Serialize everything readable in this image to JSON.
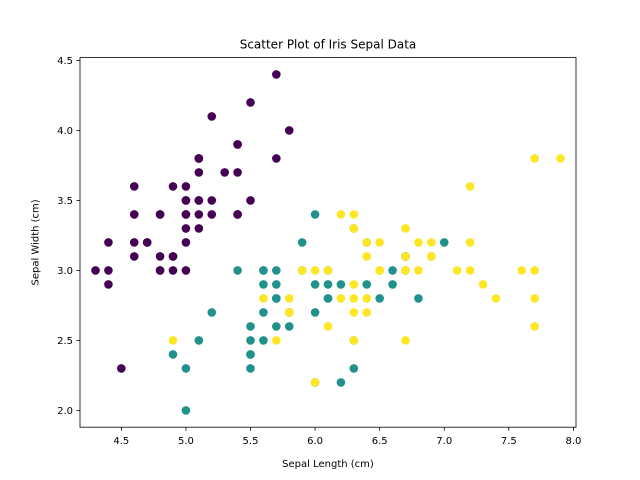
{
  "chart_data": {
    "type": "scatter",
    "title": "Scatter Plot of Iris Sepal Data",
    "xlabel": "Sepal Length (cm)",
    "ylabel": "Sepal Width (cm)",
    "xlim": [
      4.18,
      8.02
    ],
    "ylim": [
      1.88,
      4.52
    ],
    "xticks": [
      4.5,
      5.0,
      5.5,
      6.0,
      6.5,
      7.0,
      7.5,
      8.0
    ],
    "xtick_labels": [
      "4.5",
      "5.0",
      "5.5",
      "6.0",
      "6.5",
      "7.0",
      "7.5",
      "8.0"
    ],
    "yticks": [
      2.0,
      2.5,
      3.0,
      3.5,
      4.0,
      4.5
    ],
    "ytick_labels": [
      "2.0",
      "2.5",
      "3.0",
      "3.5",
      "4.0",
      "4.5"
    ],
    "grid": false,
    "legend": false,
    "series": [
      {
        "color": "#440154",
        "points": [
          [
            5.1,
            3.5
          ],
          [
            4.9,
            3.0
          ],
          [
            4.7,
            3.2
          ],
          [
            4.6,
            3.1
          ],
          [
            5.0,
            3.6
          ],
          [
            5.4,
            3.9
          ],
          [
            4.6,
            3.4
          ],
          [
            5.0,
            3.4
          ],
          [
            4.4,
            2.9
          ],
          [
            4.9,
            3.1
          ],
          [
            5.4,
            3.7
          ],
          [
            4.8,
            3.4
          ],
          [
            4.8,
            3.0
          ],
          [
            4.3,
            3.0
          ],
          [
            5.8,
            4.0
          ],
          [
            5.7,
            4.4
          ],
          [
            5.4,
            3.9
          ],
          [
            5.1,
            3.5
          ],
          [
            5.7,
            3.8
          ],
          [
            5.1,
            3.8
          ],
          [
            5.4,
            3.4
          ],
          [
            5.1,
            3.7
          ],
          [
            4.6,
            3.6
          ],
          [
            5.1,
            3.3
          ],
          [
            4.8,
            3.4
          ],
          [
            5.0,
            3.0
          ],
          [
            5.0,
            3.4
          ],
          [
            5.2,
            3.5
          ],
          [
            5.2,
            3.4
          ],
          [
            4.7,
            3.2
          ],
          [
            4.8,
            3.1
          ],
          [
            5.4,
            3.4
          ],
          [
            5.2,
            4.1
          ],
          [
            5.5,
            4.2
          ],
          [
            4.9,
            3.1
          ],
          [
            5.0,
            3.2
          ],
          [
            5.5,
            3.5
          ],
          [
            4.9,
            3.6
          ],
          [
            4.4,
            3.0
          ],
          [
            5.1,
            3.4
          ],
          [
            5.0,
            3.5
          ],
          [
            4.5,
            2.3
          ],
          [
            4.4,
            3.2
          ],
          [
            5.0,
            3.5
          ],
          [
            5.1,
            3.8
          ],
          [
            4.8,
            3.0
          ],
          [
            5.1,
            3.8
          ],
          [
            4.6,
            3.2
          ],
          [
            5.3,
            3.7
          ],
          [
            5.0,
            3.3
          ]
        ]
      },
      {
        "color": "#21918c",
        "points": [
          [
            7.0,
            3.2
          ],
          [
            6.4,
            3.2
          ],
          [
            6.9,
            3.1
          ],
          [
            5.5,
            2.3
          ],
          [
            6.5,
            2.8
          ],
          [
            5.7,
            2.8
          ],
          [
            6.3,
            3.3
          ],
          [
            4.9,
            2.4
          ],
          [
            6.6,
            2.9
          ],
          [
            5.2,
            2.7
          ],
          [
            5.0,
            2.0
          ],
          [
            5.9,
            3.0
          ],
          [
            6.0,
            2.2
          ],
          [
            6.1,
            2.9
          ],
          [
            5.6,
            2.9
          ],
          [
            6.7,
            3.1
          ],
          [
            5.6,
            3.0
          ],
          [
            5.8,
            2.7
          ],
          [
            6.2,
            2.2
          ],
          [
            5.6,
            2.5
          ],
          [
            5.9,
            3.2
          ],
          [
            6.1,
            2.8
          ],
          [
            6.3,
            2.5
          ],
          [
            6.1,
            2.8
          ],
          [
            6.4,
            2.9
          ],
          [
            6.6,
            3.0
          ],
          [
            6.8,
            2.8
          ],
          [
            6.7,
            3.0
          ],
          [
            6.0,
            2.9
          ],
          [
            5.7,
            2.6
          ],
          [
            5.5,
            2.4
          ],
          [
            5.5,
            2.4
          ],
          [
            5.8,
            2.7
          ],
          [
            6.0,
            2.7
          ],
          [
            5.4,
            3.0
          ],
          [
            6.0,
            3.4
          ],
          [
            6.7,
            3.1
          ],
          [
            6.3,
            2.3
          ],
          [
            5.6,
            3.0
          ],
          [
            5.5,
            2.5
          ],
          [
            5.5,
            2.6
          ],
          [
            6.1,
            3.0
          ],
          [
            5.8,
            2.6
          ],
          [
            5.0,
            2.3
          ],
          [
            5.6,
            2.7
          ],
          [
            5.7,
            3.0
          ],
          [
            5.7,
            2.9
          ],
          [
            6.2,
            2.9
          ],
          [
            5.1,
            2.5
          ],
          [
            5.7,
            2.8
          ]
        ]
      },
      {
        "color": "#fde725",
        "points": [
          [
            6.3,
            3.3
          ],
          [
            5.8,
            2.7
          ],
          [
            7.1,
            3.0
          ],
          [
            6.3,
            2.9
          ],
          [
            6.5,
            3.0
          ],
          [
            7.6,
            3.0
          ],
          [
            4.9,
            2.5
          ],
          [
            7.3,
            2.9
          ],
          [
            6.7,
            2.5
          ],
          [
            7.2,
            3.6
          ],
          [
            6.5,
            3.2
          ],
          [
            6.4,
            2.7
          ],
          [
            6.8,
            3.0
          ],
          [
            5.7,
            2.5
          ],
          [
            5.8,
            2.8
          ],
          [
            6.4,
            3.2
          ],
          [
            6.5,
            3.0
          ],
          [
            7.7,
            3.8
          ],
          [
            7.7,
            2.6
          ],
          [
            6.0,
            2.2
          ],
          [
            6.9,
            3.2
          ],
          [
            5.6,
            2.8
          ],
          [
            7.7,
            2.8
          ],
          [
            6.3,
            2.7
          ],
          [
            6.7,
            3.3
          ],
          [
            7.2,
            3.2
          ],
          [
            6.2,
            2.8
          ],
          [
            6.1,
            3.0
          ],
          [
            6.4,
            2.8
          ],
          [
            7.2,
            3.0
          ],
          [
            7.4,
            2.8
          ],
          [
            7.9,
            3.8
          ],
          [
            6.4,
            2.8
          ],
          [
            6.3,
            2.8
          ],
          [
            6.1,
            2.6
          ],
          [
            7.7,
            3.0
          ],
          [
            6.3,
            3.4
          ],
          [
            6.4,
            3.1
          ],
          [
            6.0,
            3.0
          ],
          [
            6.9,
            3.1
          ],
          [
            6.7,
            3.1
          ],
          [
            6.9,
            3.1
          ],
          [
            5.8,
            2.7
          ],
          [
            6.8,
            3.2
          ],
          [
            6.7,
            3.3
          ],
          [
            6.7,
            3.0
          ],
          [
            6.3,
            2.5
          ],
          [
            6.5,
            3.0
          ],
          [
            6.2,
            3.4
          ],
          [
            5.9,
            3.0
          ]
        ]
      }
    ]
  }
}
